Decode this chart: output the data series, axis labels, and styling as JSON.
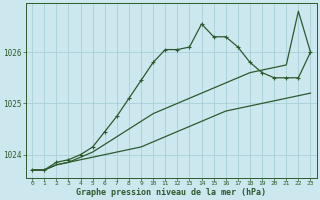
{
  "title": "Graphe pression niveau de la mer (hPa)",
  "bg_color": "#cce8ee",
  "grid_color": "#aad0d8",
  "line_color": "#2d5a2d",
  "x_values": [
    0,
    1,
    2,
    3,
    4,
    5,
    6,
    7,
    8,
    9,
    10,
    11,
    12,
    13,
    14,
    15,
    16,
    17,
    18,
    19,
    20,
    21,
    22,
    23
  ],
  "y_main": [
    1023.7,
    1023.7,
    1023.85,
    1023.9,
    1024.0,
    1024.15,
    1024.45,
    1024.75,
    1025.1,
    1025.45,
    1025.8,
    1026.05,
    1026.05,
    1026.1,
    1026.55,
    1026.3,
    1026.3,
    1026.1,
    1025.8,
    1025.6,
    1025.5,
    1025.5,
    1025.5,
    1026.0
  ],
  "y_straight1": [
    1023.7,
    1023.7,
    1023.8,
    1023.85,
    1023.9,
    1023.95,
    1024.0,
    1024.05,
    1024.1,
    1024.15,
    1024.25,
    1024.35,
    1024.45,
    1024.55,
    1024.65,
    1024.75,
    1024.85,
    1024.9,
    1024.95,
    1025.0,
    1025.05,
    1025.1,
    1025.15,
    1025.2
  ],
  "y_spike": [
    1023.7,
    1023.7,
    1023.8,
    1023.85,
    1023.95,
    1024.05,
    1024.2,
    1024.35,
    1024.5,
    1024.65,
    1024.8,
    1024.9,
    1025.0,
    1025.1,
    1025.2,
    1025.3,
    1025.4,
    1025.5,
    1025.6,
    1025.65,
    1025.7,
    1025.75,
    1026.8,
    1026.0
  ],
  "ylim": [
    1023.55,
    1026.95
  ],
  "yticks": [
    1024,
    1025,
    1026
  ],
  "xticks": [
    0,
    1,
    2,
    3,
    4,
    5,
    6,
    7,
    8,
    9,
    10,
    11,
    12,
    13,
    14,
    15,
    16,
    17,
    18,
    19,
    20,
    21,
    22,
    23
  ]
}
